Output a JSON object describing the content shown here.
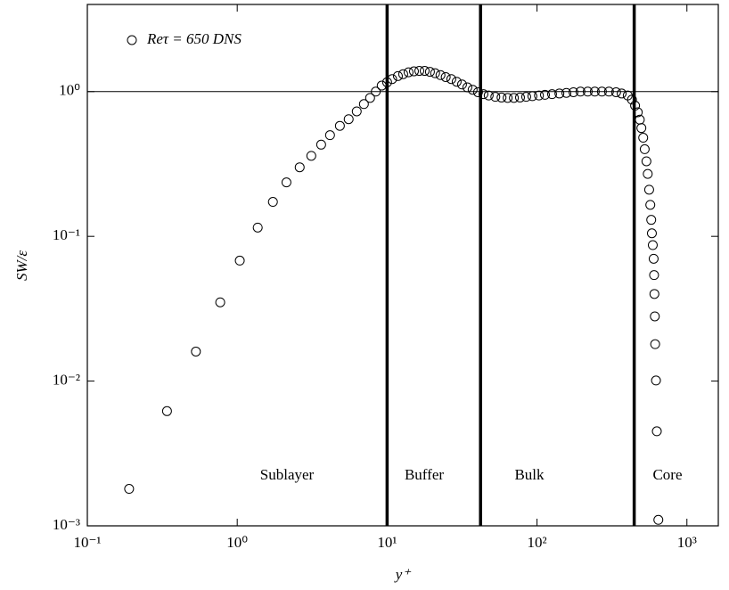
{
  "chart_data": {
    "type": "scatter",
    "x_label": "y⁺",
    "y_label": "SW/ε",
    "xscale": "log",
    "yscale": "log",
    "xlim": [
      0.1,
      1620
    ],
    "ylim": [
      0.001,
      4
    ],
    "xticks": [
      {
        "value": 0.1,
        "label": "10⁻¹"
      },
      {
        "value": 1,
        "label": "10⁰"
      },
      {
        "value": 10,
        "label": "10¹"
      },
      {
        "value": 100,
        "label": "10²"
      },
      {
        "value": 1000,
        "label": "10³"
      }
    ],
    "yticks": [
      {
        "value": 0.001,
        "label": "10⁻³"
      },
      {
        "value": 0.01,
        "label": "10⁻²"
      },
      {
        "value": 0.1,
        "label": "10⁻¹"
      },
      {
        "value": 1,
        "label": "10⁰"
      }
    ],
    "reference_lines": {
      "horizontal": [
        1
      ],
      "vertical": [
        10,
        42,
        445
      ]
    },
    "annotations": [
      "Sublayer",
      "Buffer",
      "Bulk",
      "Core"
    ],
    "legend": "top-left",
    "series": [
      {
        "name": "Reτ = 650 DNS",
        "color": "#000000",
        "x": [
          0.19,
          0.34,
          0.53,
          0.77,
          1.04,
          1.37,
          1.73,
          2.13,
          2.61,
          3.12,
          3.63,
          4.16,
          4.84,
          5.54,
          6.27,
          7.0,
          7.7,
          8.4,
          9.2,
          10,
          10.8,
          11.8,
          12.8,
          13.9,
          15.1,
          16.4,
          17.8,
          19.3,
          20.9,
          22.7,
          24.6,
          26.8,
          29.1,
          31.6,
          34.3,
          37.2,
          40.4,
          43.9,
          47.6,
          52.7,
          58,
          63.7,
          70.1,
          77,
          84.7,
          93.1,
          103,
          113,
          126,
          141,
          157,
          175,
          195,
          218,
          243,
          271,
          302,
          337,
          367,
          403,
          430,
          451,
          470,
          485,
          497,
          511,
          523,
          537,
          548,
          560,
          570,
          578,
          584,
          592,
          600,
          604,
          607,
          611,
          614,
          622,
          630,
          645
        ],
        "values": [
          0.0018,
          0.0062,
          0.016,
          0.035,
          0.068,
          0.115,
          0.173,
          0.236,
          0.3,
          0.36,
          0.43,
          0.5,
          0.58,
          0.645,
          0.73,
          0.82,
          0.905,
          1.0,
          1.1,
          1.16,
          1.22,
          1.28,
          1.32,
          1.36,
          1.38,
          1.39,
          1.39,
          1.37,
          1.34,
          1.3,
          1.26,
          1.22,
          1.17,
          1.12,
          1.07,
          1.03,
          0.99,
          0.96,
          0.94,
          0.92,
          0.91,
          0.905,
          0.905,
          0.91,
          0.92,
          0.93,
          0.94,
          0.95,
          0.96,
          0.97,
          0.98,
          0.99,
          1.0,
          1.0,
          1.0,
          1.0,
          1.0,
          0.99,
          0.97,
          0.94,
          0.88,
          0.8,
          0.72,
          0.64,
          0.56,
          0.48,
          0.4,
          0.33,
          0.27,
          0.21,
          0.165,
          0.13,
          0.105,
          0.087,
          0.07,
          0.054,
          0.04,
          0.028,
          0.018,
          0.0101,
          0.0045,
          0.0011
        ]
      }
    ]
  }
}
